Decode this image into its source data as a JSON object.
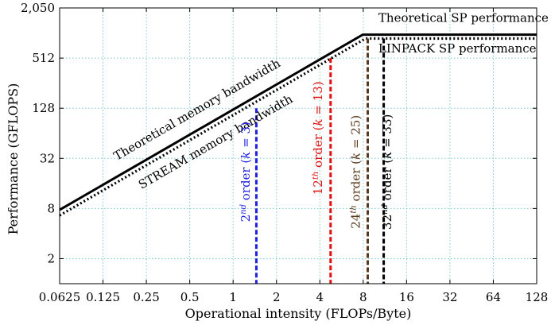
{
  "chart_data": {
    "type": "line",
    "xscale": "log2",
    "yscale": "log2",
    "xlim": [
      0.0625,
      128
    ],
    "ylim": [
      1,
      2050
    ],
    "grid": true,
    "xlabel": "Operational intensity (FLOPs/Byte)",
    "ylabel": "Performance (GFLOPS)",
    "x_ticks": [
      0.0625,
      0.125,
      0.25,
      0.5,
      1,
      2,
      4,
      8,
      16,
      32,
      64,
      128
    ],
    "x_tick_labels": [
      "0.0625",
      "0.125",
      "0.25",
      "0.5",
      "1",
      "2",
      "4",
      "8",
      "16",
      "32",
      "64",
      "128"
    ],
    "y_ticks": [
      2,
      8,
      32,
      128,
      512,
      2050
    ],
    "y_tick_labels": [
      "2",
      "8",
      "32",
      "128",
      "512",
      "2,050"
    ],
    "series": [
      {
        "style": "solid",
        "color": "#000000",
        "points": [
          [
            0.0625,
            7.7
          ],
          [
            7.95,
            980
          ],
          [
            128,
            980
          ]
        ]
      },
      {
        "style": "dotted",
        "color": "#000000",
        "points": [
          [
            0.0625,
            6.6
          ],
          [
            8.3,
            880
          ],
          [
            128,
            880
          ]
        ]
      }
    ],
    "verticals": [
      {
        "x": 1.45,
        "y_top": 128,
        "color": "#1f1fe0"
      },
      {
        "x": 4.75,
        "y_top": 512,
        "color": "#e01010"
      },
      {
        "x": 8.6,
        "y_top": 880,
        "color": "#5a3a1e"
      },
      {
        "x": 11.1,
        "y_top": 880,
        "color": "#000000"
      }
    ],
    "annotations": [
      {
        "text": "Theoretical SP performance",
        "x": 10.2,
        "y": 1400,
        "rotate": false,
        "color": "#000000"
      },
      {
        "text": "LINPACK SP performance",
        "x": 10.2,
        "y": 600,
        "rotate": false,
        "color": "#000000"
      },
      {
        "text": "Theoretical memory bandwidth",
        "x": 0.58,
        "y": 112,
        "rotate": true,
        "color": "#000000"
      },
      {
        "text": "STREAM memory bandwidth",
        "x": 0.78,
        "y": 46,
        "rotate": true,
        "color": "#000000"
      }
    ],
    "vertical_labels": [
      {
        "base": "2",
        "sup": "nd",
        "rest": " order (",
        "k": "k",
        "tail": " = 3)",
        "x": 1.3,
        "y": 22,
        "color": "#1f1fe0"
      },
      {
        "base": "12",
        "sup": "th",
        "rest": " order (",
        "k": "k",
        "tail": " = 13)",
        "x": 4.15,
        "y": 56,
        "color": "#e01010"
      },
      {
        "base": "24",
        "sup": "th",
        "rest": " order (",
        "k": "k",
        "tail": " = 25)",
        "x": 7.55,
        "y": 22,
        "color": "#5a3a1e"
      },
      {
        "base": "32",
        "sup": "nd",
        "rest": " order (",
        "k": "k",
        "tail": " = 33)",
        "x": 12.5,
        "y": 22,
        "color": "#000000"
      }
    ]
  }
}
